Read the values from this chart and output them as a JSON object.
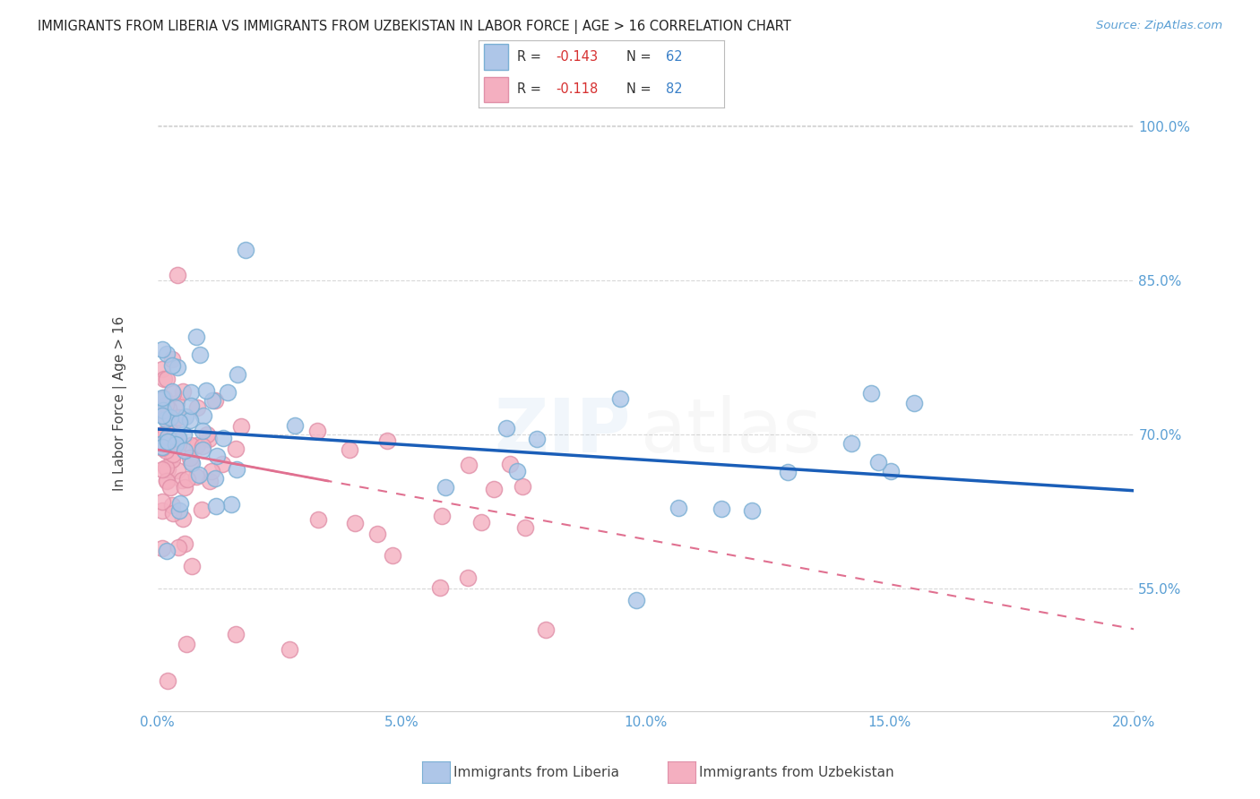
{
  "title": "IMMIGRANTS FROM LIBERIA VS IMMIGRANTS FROM UZBEKISTAN IN LABOR FORCE | AGE > 16 CORRELATION CHART",
  "source": "Source: ZipAtlas.com",
  "ylabel": "In Labor Force | Age > 16",
  "xlim": [
    0.0,
    0.2
  ],
  "ylim": [
    0.43,
    1.03
  ],
  "xtick_labels": [
    "0.0%",
    "5.0%",
    "10.0%",
    "15.0%",
    "20.0%"
  ],
  "xtick_vals": [
    0.0,
    0.05,
    0.1,
    0.15,
    0.2
  ],
  "ytick_labels": [
    "55.0%",
    "70.0%",
    "85.0%",
    "100.0%"
  ],
  "ytick_vals": [
    0.55,
    0.7,
    0.85,
    1.0
  ],
  "color_liberia_fill": "#aec6e8",
  "color_liberia_edge": "#7aafd4",
  "color_uzbekistan_fill": "#f4afc0",
  "color_uzbekistan_edge": "#e090a8",
  "color_line_liberia": "#1a5eb8",
  "color_line_uzbekistan": "#e07090",
  "color_axis_ticks": "#5a9fd4",
  "color_title": "#222222",
  "color_source": "#5a9fd4",
  "color_grid": "#d8d8d8",
  "lib_line_y0": 0.705,
  "lib_line_y1": 0.645,
  "uzb_line_y0": 0.685,
  "uzb_line_y1": 0.51,
  "background_color": "#ffffff"
}
